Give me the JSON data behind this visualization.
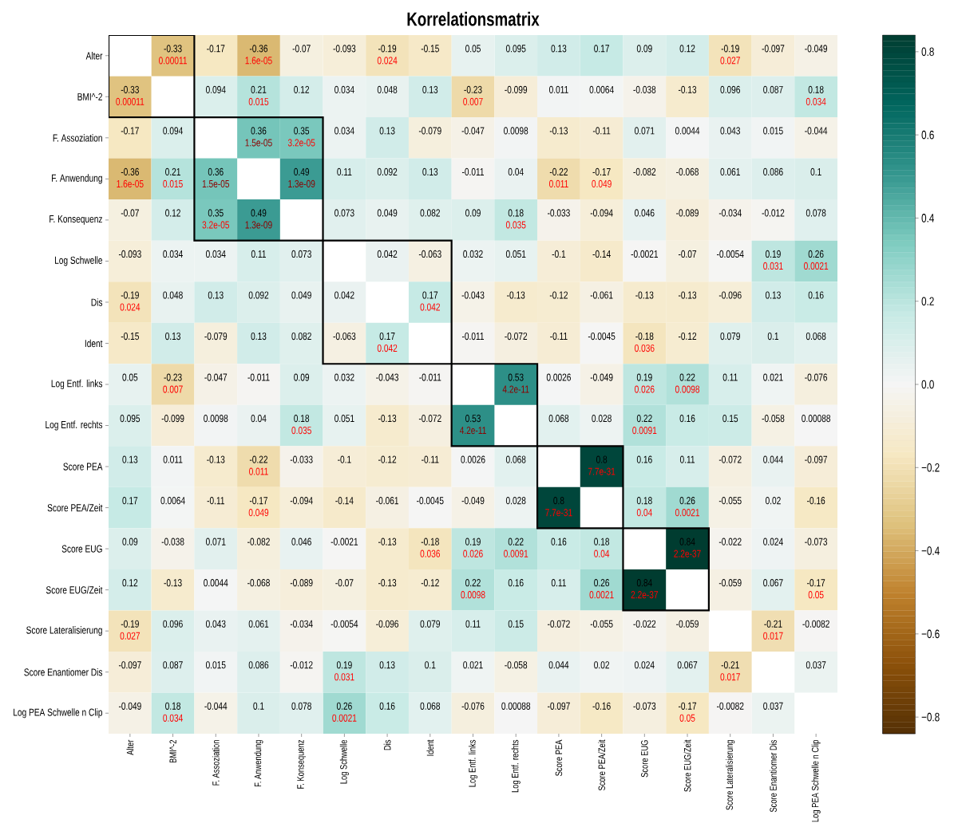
{
  "chart_data": {
    "type": "heatmap",
    "title": "Korrelationsmatrix",
    "categories": [
      "Alter",
      "BMI^-2",
      "F. Assoziation",
      "F. Anwendung",
      "F. Konsequenz",
      "Log Schwelle",
      "Dis",
      "Ident",
      "Log Entf. links",
      "Log Entf. rechts",
      "Score PEA",
      "Score PEA/Zeit",
      "Score EUG",
      "Score EUG/Zeit",
      "Score Lateralisierung",
      "Score Enantiomer Dis",
      "Log PEA Schwelle n Clip"
    ],
    "y_categories": [
      "Alter",
      "BMI^-2",
      "F. Assoziation",
      "F. Anwendung",
      "F. Konsequenz",
      "Log Schwelle",
      "Dis",
      "Ident",
      "Log Entf. links",
      "Log Entf. rechts",
      "Score PEA",
      "Score PEA/Zeit",
      "Score EUG",
      "Score EUG/Zeit",
      "Score Lateralisierung",
      "Score Enantiomer Dis",
      "Log PEA Schwelle n Clip"
    ],
    "cells": [
      [
        null,
        -0.33,
        -0.17,
        -0.36,
        -0.07,
        -0.093,
        -0.19,
        -0.15,
        0.05,
        0.095,
        0.13,
        0.17,
        0.09,
        0.12,
        -0.19,
        -0.097,
        -0.049
      ],
      [
        -0.33,
        null,
        0.094,
        0.21,
        0.12,
        0.034,
        0.048,
        0.13,
        -0.23,
        -0.099,
        0.011,
        0.0064,
        -0.038,
        -0.13,
        0.096,
        0.087,
        0.18
      ],
      [
        -0.17,
        0.094,
        null,
        0.36,
        0.35,
        0.034,
        0.13,
        -0.079,
        -0.047,
        0.0098,
        -0.13,
        -0.11,
        0.071,
        0.0044,
        0.043,
        0.015,
        -0.044
      ],
      [
        -0.36,
        0.21,
        0.36,
        null,
        0.49,
        0.11,
        0.092,
        0.13,
        -0.011,
        0.04,
        -0.22,
        -0.17,
        -0.082,
        -0.068,
        0.061,
        0.086,
        0.1
      ],
      [
        -0.07,
        0.12,
        0.35,
        0.49,
        null,
        0.073,
        0.049,
        0.082,
        0.09,
        0.18,
        -0.033,
        -0.094,
        0.046,
        -0.089,
        -0.034,
        -0.012,
        0.078
      ],
      [
        -0.093,
        0.034,
        0.034,
        0.11,
        0.073,
        null,
        0.042,
        -0.063,
        0.032,
        0.051,
        -0.1,
        -0.14,
        -0.0021,
        -0.07,
        -0.0054,
        0.19,
        0.26
      ],
      [
        -0.19,
        0.048,
        0.13,
        0.092,
        0.049,
        0.042,
        null,
        0.17,
        -0.043,
        -0.13,
        -0.12,
        -0.061,
        -0.13,
        -0.13,
        -0.096,
        0.13,
        0.16
      ],
      [
        -0.15,
        0.13,
        -0.079,
        0.13,
        0.082,
        -0.063,
        0.17,
        null,
        -0.011,
        -0.072,
        -0.11,
        -0.0045,
        -0.18,
        -0.12,
        0.079,
        0.1,
        0.068
      ],
      [
        0.05,
        -0.23,
        -0.047,
        -0.011,
        0.09,
        0.032,
        -0.043,
        -0.011,
        null,
        0.53,
        0.0026,
        -0.049,
        0.19,
        0.22,
        0.11,
        0.021,
        -0.076
      ],
      [
        0.095,
        -0.099,
        0.0098,
        0.04,
        0.18,
        0.051,
        -0.13,
        -0.072,
        0.53,
        null,
        0.068,
        0.028,
        0.22,
        0.16,
        0.15,
        -0.058,
        0.00088
      ],
      [
        0.13,
        0.011,
        -0.13,
        -0.22,
        -0.033,
        -0.1,
        -0.12,
        -0.11,
        0.0026,
        0.068,
        null,
        0.8,
        0.16,
        0.11,
        -0.072,
        0.044,
        -0.097
      ],
      [
        0.17,
        0.0064,
        -0.11,
        -0.17,
        -0.094,
        -0.14,
        -0.061,
        -0.0045,
        -0.049,
        0.028,
        0.8,
        null,
        0.18,
        0.26,
        -0.055,
        0.02,
        -0.16
      ],
      [
        0.09,
        -0.038,
        0.071,
        -0.082,
        0.046,
        -0.0021,
        -0.13,
        -0.18,
        0.19,
        0.22,
        0.16,
        0.18,
        null,
        0.84,
        -0.022,
        0.024,
        -0.073
      ],
      [
        0.12,
        -0.13,
        0.0044,
        -0.068,
        -0.089,
        -0.07,
        -0.13,
        -0.12,
        0.22,
        0.16,
        0.11,
        0.26,
        0.84,
        null,
        -0.059,
        0.067,
        -0.17
      ],
      [
        -0.19,
        0.096,
        0.043,
        0.061,
        -0.034,
        -0.0054,
        -0.096,
        0.079,
        0.11,
        0.15,
        -0.072,
        -0.055,
        -0.022,
        -0.059,
        null,
        -0.21,
        -0.0082
      ],
      [
        -0.097,
        0.087,
        0.015,
        0.086,
        -0.012,
        0.19,
        0.13,
        0.1,
        0.021,
        -0.058,
        0.044,
        0.02,
        0.024,
        0.067,
        -0.21,
        null,
        0.037
      ],
      [
        -0.049,
        0.18,
        -0.044,
        0.1,
        0.078,
        0.26,
        0.16,
        0.068,
        -0.076,
        0.00088,
        -0.097,
        -0.16,
        -0.073,
        -0.17,
        -0.0082,
        0.037,
        null
      ]
    ],
    "cell_labels": [
      [
        null,
        "-0.33 0.00011",
        "-0.17",
        "-0.36 1.6e-05",
        "-0.07",
        "-0.093",
        "-0.19 0.024",
        "-0.15",
        "0.05",
        "0.095",
        "0.13",
        "0.17",
        "0.09",
        "0.12",
        "-0.19 0.027",
        "-0.097",
        "-0.049"
      ],
      [
        "-0.33 0.00011",
        null,
        "0.094",
        "0.21 0.015",
        "0.12",
        "0.034",
        "0.048",
        "0.13",
        "-0.23 0.007",
        "-0.099",
        "0.011",
        "0.0064",
        "-0.038",
        "-0.13",
        "0.096",
        "0.087",
        "0.18 0.034"
      ],
      [
        "-0.17",
        "0.094",
        null,
        "0.36 1.5e-05",
        "0.35 3.2e-05",
        "0.034",
        "0.13",
        "-0.079",
        "-0.047",
        "0.0098",
        "-0.13",
        "-0.11",
        "0.071",
        "0.0044",
        "0.043",
        "0.015",
        "-0.044"
      ],
      [
        "-0.36 1.6e-05",
        "0.21 0.015",
        "0.36 1.5e-05",
        null,
        "0.49 1.3e-09",
        "0.11",
        "0.092",
        "0.13",
        "-0.011",
        "0.04",
        "-0.22 0.011",
        "-0.17 0.049",
        "-0.082",
        "-0.068",
        "0.061",
        "0.086",
        "0.1"
      ],
      [
        "-0.07",
        "0.12",
        "0.35 3.2e-05",
        "0.49 1.3e-09",
        null,
        "0.073",
        "0.049",
        "0.082",
        "0.09",
        "0.18 0.035",
        "-0.033",
        "-0.094",
        "0.046",
        "-0.089",
        "-0.034",
        "-0.012",
        "0.078"
      ],
      [
        "-0.093",
        "0.034",
        "0.034",
        "0.11",
        "0.073",
        null,
        "0.042",
        "-0.063",
        "0.032",
        "0.051",
        "-0.1",
        "-0.14",
        "-0.0021",
        "-0.07",
        "-0.0054",
        "0.19 0.031",
        "0.26 0.0021"
      ],
      [
        "-0.19 0.024",
        "0.048",
        "0.13",
        "0.092",
        "0.049",
        "0.042",
        null,
        "0.17 0.042",
        "-0.043",
        "-0.13",
        "-0.12",
        "-0.061",
        "-0.13",
        "-0.13",
        "-0.096",
        "0.13",
        "0.16"
      ],
      [
        "-0.15",
        "0.13",
        "-0.079",
        "0.13",
        "0.082",
        "-0.063",
        "0.17 0.042",
        null,
        "-0.011",
        "-0.072",
        "-0.11",
        "-0.0045",
        "-0.18 0.036",
        "-0.12",
        "0.079",
        "0.1",
        "0.068"
      ],
      [
        "0.05",
        "-0.23 0.007",
        "-0.047",
        "-0.011",
        "0.09",
        "0.032",
        "-0.043",
        "-0.011",
        null,
        "0.53 4.2e-11",
        "0.0026",
        "-0.049",
        "0.19 0.026",
        "0.22 0.0098",
        "0.11",
        "0.021",
        "-0.076"
      ],
      [
        "0.095",
        "-0.099",
        "0.0098",
        "0.04",
        "0.18 0.035",
        "0.051",
        "-0.13",
        "-0.072",
        "0.53 4.2e-11",
        null,
        "0.068",
        "0.028",
        "0.22 0.0091",
        "0.16",
        "0.15",
        "-0.058",
        "0.00088"
      ],
      [
        "0.13",
        "0.011",
        "-0.13",
        "-0.22 0.011",
        "-0.033",
        "-0.1",
        "-0.12",
        "-0.11",
        "0.0026",
        "0.068",
        null,
        "0.8 7.7e-31",
        "0.16",
        "0.11",
        "-0.072",
        "0.044",
        "-0.097"
      ],
      [
        "0.17",
        "0.0064",
        "-0.11",
        "-0.17 0.049",
        "-0.094",
        "-0.14",
        "-0.061",
        "-0.0045",
        "-0.049",
        "0.028",
        "0.8 7.7e-31",
        null,
        "0.18 0.04",
        "0.26 0.0021",
        "-0.055",
        "0.02",
        "-0.16"
      ],
      [
        "0.09",
        "-0.038",
        "0.071",
        "-0.082",
        "0.046",
        "-0.0021",
        "-0.13",
        "-0.18 0.036",
        "0.19 0.026",
        "0.22 0.0091",
        "0.16",
        "0.18 0.04",
        null,
        "0.84 2.2e-37",
        "-0.022",
        "0.024",
        "-0.073"
      ],
      [
        "0.12",
        "-0.13",
        "0.0044",
        "-0.068",
        "-0.089",
        "-0.07",
        "-0.13",
        "-0.12",
        "0.22 0.0098",
        "0.16",
        "0.11",
        "0.26 0.0021",
        "0.84 2.2e-37",
        null,
        "-0.059",
        "0.067",
        "-0.17 0.05"
      ],
      [
        "-0.19 0.027",
        "0.096",
        "0.043",
        "0.061",
        "-0.034",
        "-0.0054",
        "-0.096",
        "0.079",
        "0.11",
        "0.15",
        "-0.072",
        "-0.055",
        "-0.022",
        "-0.059",
        null,
        "-0.21 0.017",
        "-0.0082"
      ],
      [
        "-0.097",
        "0.087",
        "0.015",
        "0.086",
        "-0.012",
        "0.19 0.031",
        "0.13",
        "0.1",
        "0.021",
        "-0.058",
        "0.044",
        "0.02",
        "0.024",
        "0.067",
        "-0.21 0.017",
        null,
        "0.037"
      ],
      [
        "-0.049",
        "0.18 0.034",
        "-0.044",
        "0.1",
        "0.078",
        "0.26 0.0021",
        "0.16",
        "0.068",
        "-0.076",
        "0.00088",
        "-0.097",
        "-0.16",
        "-0.073",
        "-0.17 0.05",
        "-0.0082",
        "0.037",
        null
      ]
    ],
    "clim": [
      -0.84,
      0.84
    ],
    "cticks": [
      {
        "value": -0.8,
        "label": "−0.8"
      },
      {
        "value": -0.6,
        "label": "−0.6"
      },
      {
        "value": -0.4,
        "label": "−0.4"
      },
      {
        "value": -0.2,
        "label": "−0.2"
      },
      {
        "value": 0.0,
        "label": "0.0"
      },
      0.2,
      0.4,
      0.6,
      0.8
    ]
  }
}
